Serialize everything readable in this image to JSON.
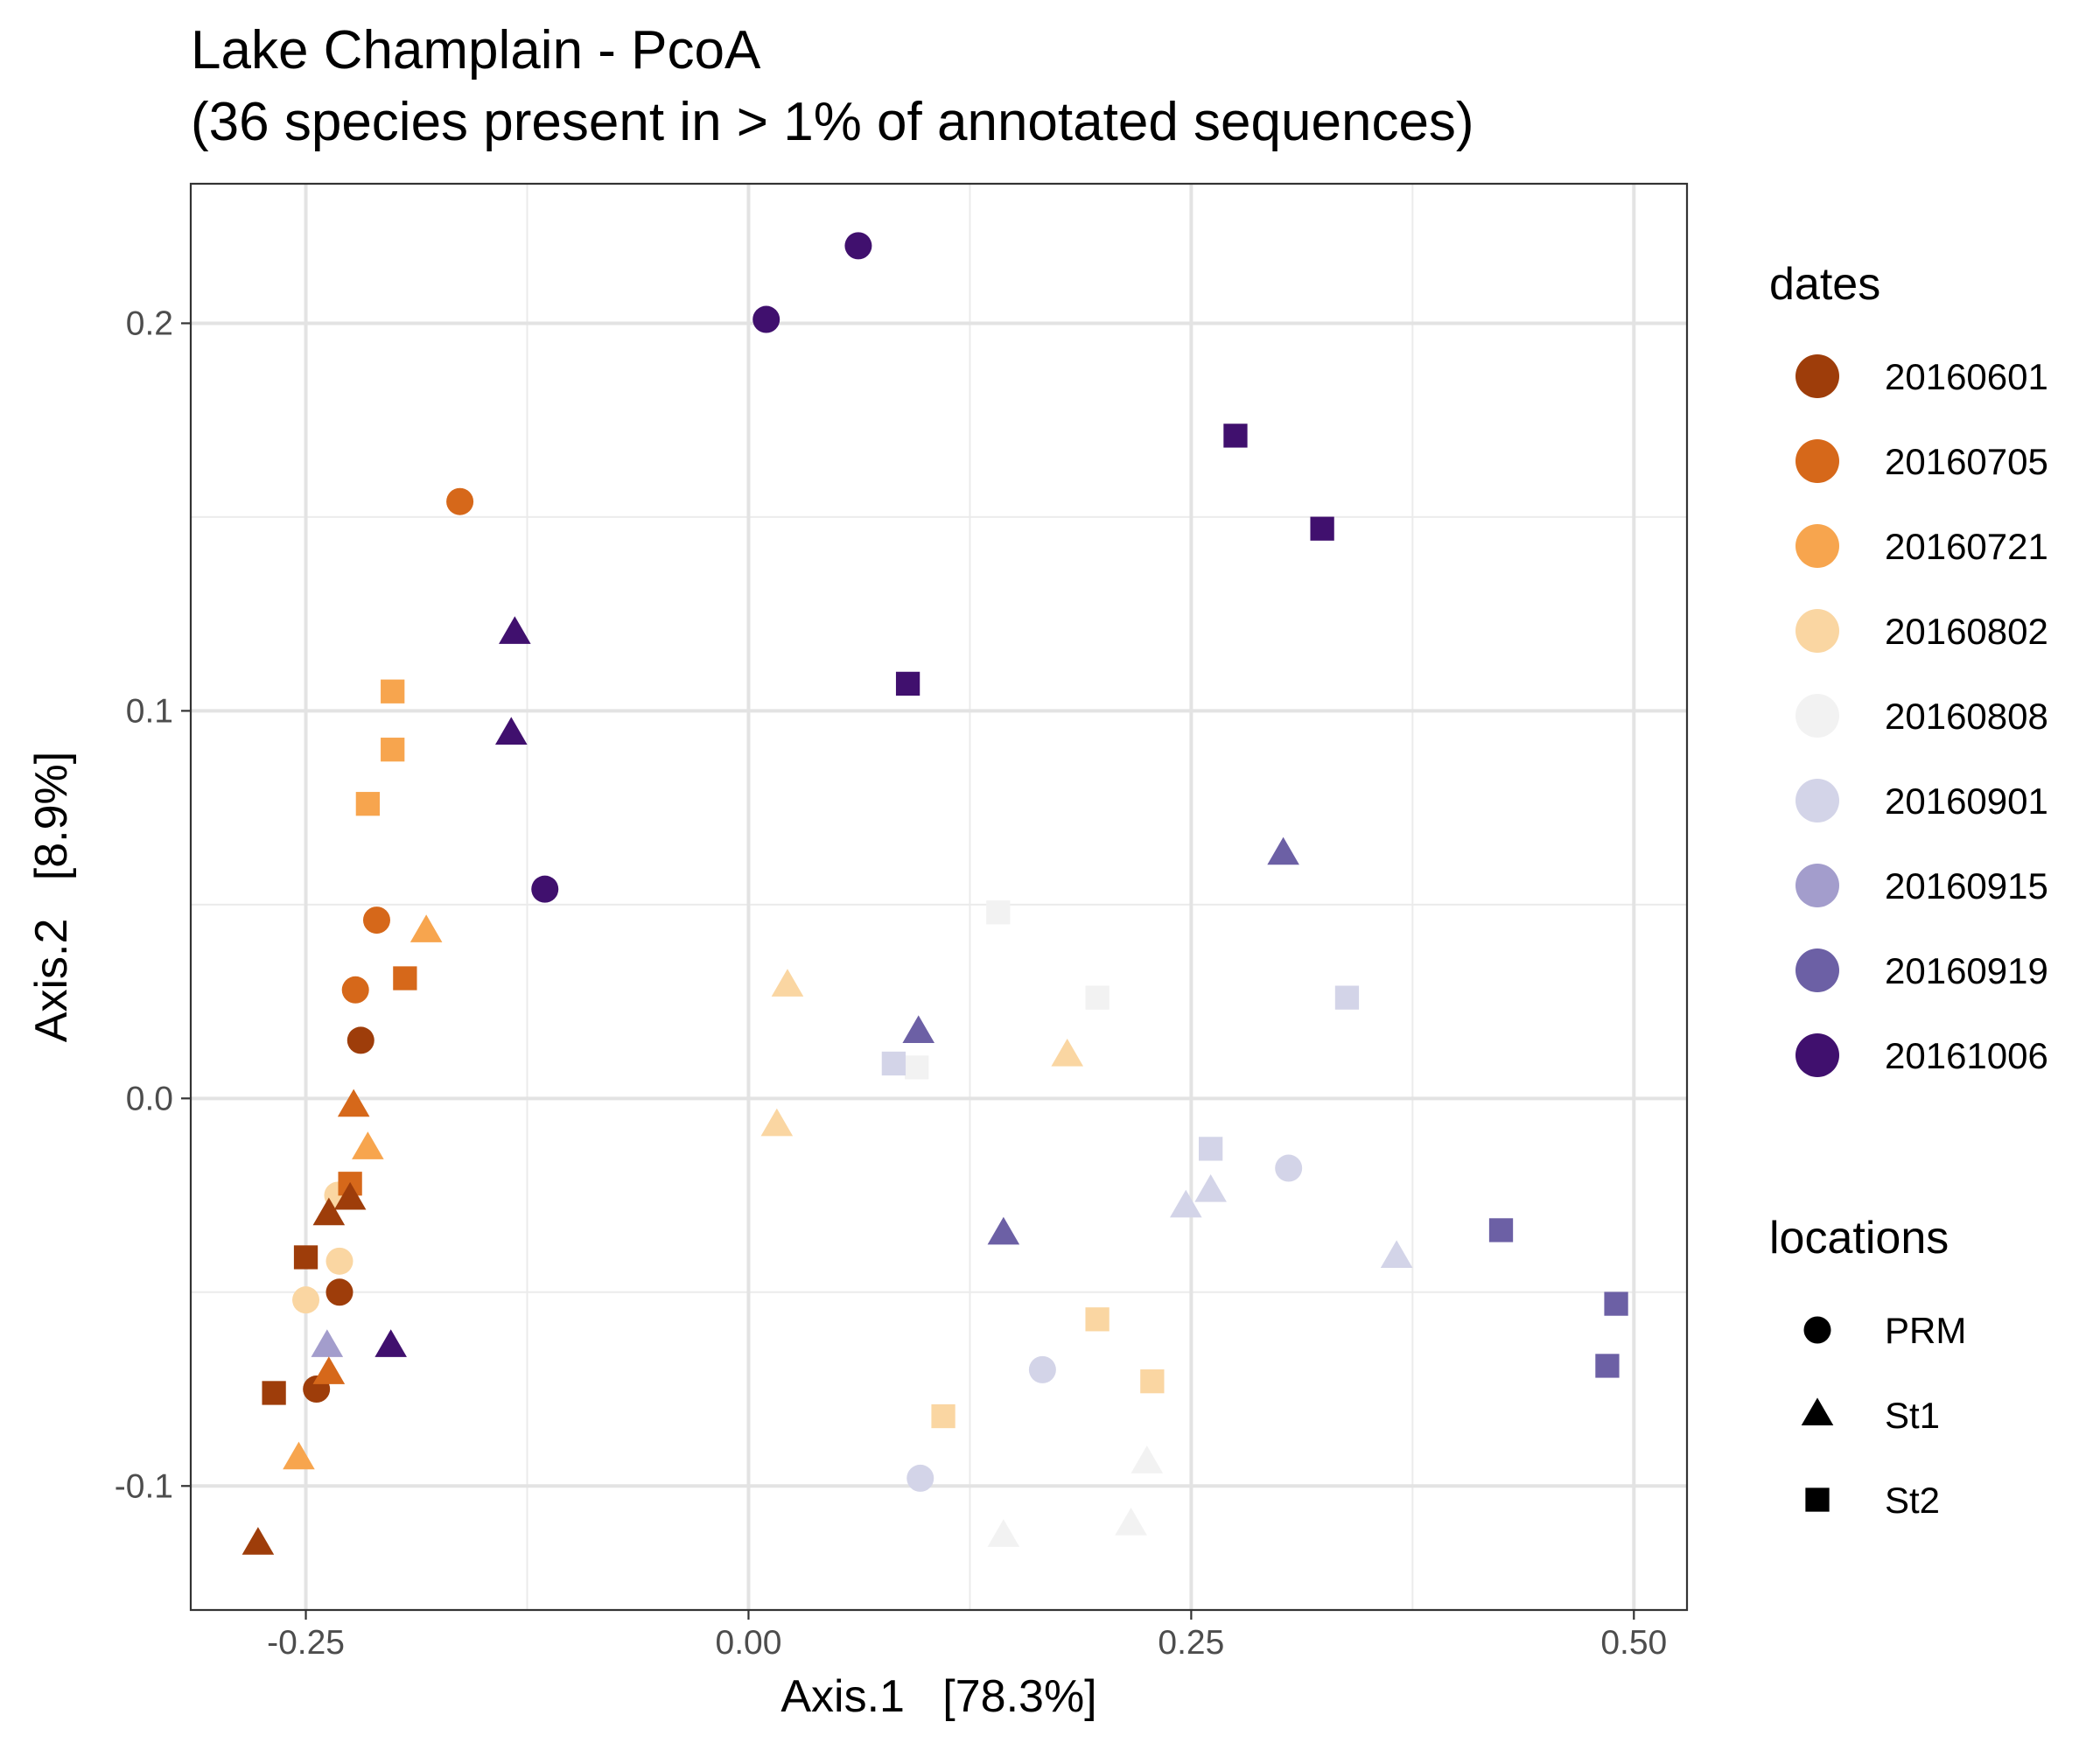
{
  "chart_data": {
    "type": "scatter",
    "title": "Lake Champlain - PcoA",
    "subtitle": "(36 species present in > 1% of annotated sequences)",
    "xlabel": "Axis.1   [78.3%]",
    "ylabel": "Axis.2   [8.9%]",
    "xlim": [
      -0.315,
      0.53
    ],
    "ylim": [
      -0.132,
      0.236
    ],
    "x_ticks": [
      {
        "value": -0.25,
        "label": "-0.25"
      },
      {
        "value": 0.0,
        "label": "0.00"
      },
      {
        "value": 0.25,
        "label": "0.25"
      },
      {
        "value": 0.5,
        "label": "0.50"
      }
    ],
    "y_ticks": [
      {
        "value": -0.1,
        "label": "-0.1"
      },
      {
        "value": 0.0,
        "label": "0.0"
      },
      {
        "value": 0.1,
        "label": "0.1"
      },
      {
        "value": 0.2,
        "label": "0.2"
      }
    ],
    "x_minor_grid": [
      -0.125,
      0.125,
      0.375
    ],
    "y_minor_grid": [
      -0.05,
      0.05,
      0.15
    ],
    "grid": true,
    "legend_position": "right",
    "color_legend": {
      "title": "dates",
      "entries": [
        {
          "label": "20160601",
          "color": "#9E3D0A"
        },
        {
          "label": "20160705",
          "color": "#D6681A"
        },
        {
          "label": "20160721",
          "color": "#F7A54E"
        },
        {
          "label": "20160802",
          "color": "#FAD6A2"
        },
        {
          "label": "20160808",
          "color": "#F2F2F2"
        },
        {
          "label": "20160901",
          "color": "#D3D4E8"
        },
        {
          "label": "20160915",
          "color": "#A39DCC"
        },
        {
          "label": "20160919",
          "color": "#6C60A5"
        },
        {
          "label": "20161006",
          "color": "#40106E"
        }
      ]
    },
    "shape_legend": {
      "title": "locations",
      "entries": [
        {
          "label": "PRM",
          "shape": "circle"
        },
        {
          "label": "St1",
          "shape": "triangle"
        },
        {
          "label": "St2",
          "shape": "square"
        }
      ]
    },
    "points": [
      {
        "x": 0.062,
        "y": 0.22,
        "date": "20161006",
        "location": "PRM"
      },
      {
        "x": 0.01,
        "y": 0.201,
        "date": "20161006",
        "location": "PRM"
      },
      {
        "x": -0.115,
        "y": 0.054,
        "date": "20161006",
        "location": "PRM"
      },
      {
        "x": -0.132,
        "y": 0.12,
        "date": "20161006",
        "location": "St1"
      },
      {
        "x": -0.134,
        "y": 0.094,
        "date": "20161006",
        "location": "St1"
      },
      {
        "x": -0.202,
        "y": -0.064,
        "date": "20161006",
        "location": "St1"
      },
      {
        "x": 0.275,
        "y": 0.171,
        "date": "20161006",
        "location": "St2"
      },
      {
        "x": 0.324,
        "y": 0.147,
        "date": "20161006",
        "location": "St2"
      },
      {
        "x": 0.09,
        "y": 0.107,
        "date": "20161006",
        "location": "St2"
      },
      {
        "x": -0.163,
        "y": 0.154,
        "date": "20160705",
        "location": "PRM"
      },
      {
        "x": -0.21,
        "y": 0.046,
        "date": "20160705",
        "location": "PRM"
      },
      {
        "x": -0.222,
        "y": 0.028,
        "date": "20160705",
        "location": "PRM"
      },
      {
        "x": -0.219,
        "y": 0.015,
        "date": "20160601",
        "location": "PRM"
      },
      {
        "x": -0.231,
        "y": -0.05,
        "date": "20160601",
        "location": "PRM"
      },
      {
        "x": -0.244,
        "y": -0.075,
        "date": "20160601",
        "location": "PRM"
      },
      {
        "x": -0.231,
        "y": -0.042,
        "date": "20160802",
        "location": "PRM"
      },
      {
        "x": -0.25,
        "y": -0.052,
        "date": "20160802",
        "location": "PRM"
      },
      {
        "x": -0.232,
        "y": -0.025,
        "date": "20160802",
        "location": "PRM"
      },
      {
        "x": 0.305,
        "y": -0.018,
        "date": "20160901",
        "location": "PRM"
      },
      {
        "x": 0.166,
        "y": -0.07,
        "date": "20160901",
        "location": "PRM"
      },
      {
        "x": 0.097,
        "y": -0.098,
        "date": "20160901",
        "location": "PRM"
      },
      {
        "x": -0.201,
        "y": 0.105,
        "date": "20160721",
        "location": "St2"
      },
      {
        "x": -0.201,
        "y": 0.09,
        "date": "20160721",
        "location": "St2"
      },
      {
        "x": -0.215,
        "y": 0.076,
        "date": "20160721",
        "location": "St2"
      },
      {
        "x": -0.194,
        "y": 0.031,
        "date": "20160705",
        "location": "St2"
      },
      {
        "x": -0.225,
        "y": -0.022,
        "date": "20160705",
        "location": "St2"
      },
      {
        "x": -0.25,
        "y": -0.041,
        "date": "20160601",
        "location": "St2"
      },
      {
        "x": -0.268,
        "y": -0.076,
        "date": "20160601",
        "location": "St2"
      },
      {
        "x": 0.11,
        "y": -0.082,
        "date": "20160802",
        "location": "St2"
      },
      {
        "x": 0.197,
        "y": -0.057,
        "date": "20160802",
        "location": "St2"
      },
      {
        "x": 0.228,
        "y": -0.073,
        "date": "20160802",
        "location": "St2"
      },
      {
        "x": 0.141,
        "y": 0.048,
        "date": "20160808",
        "location": "St2"
      },
      {
        "x": 0.197,
        "y": 0.026,
        "date": "20160808",
        "location": "St2"
      },
      {
        "x": 0.095,
        "y": 0.008,
        "date": "20160808",
        "location": "St2"
      },
      {
        "x": 0.082,
        "y": 0.009,
        "date": "20160901",
        "location": "St2"
      },
      {
        "x": 0.261,
        "y": -0.013,
        "date": "20160901",
        "location": "St2"
      },
      {
        "x": 0.338,
        "y": 0.026,
        "date": "20160901",
        "location": "St2"
      },
      {
        "x": 0.425,
        "y": -0.034,
        "date": "20160919",
        "location": "St2"
      },
      {
        "x": 0.49,
        "y": -0.053,
        "date": "20160919",
        "location": "St2"
      },
      {
        "x": 0.485,
        "y": -0.069,
        "date": "20160919",
        "location": "St2"
      },
      {
        "x": -0.182,
        "y": 0.043,
        "date": "20160721",
        "location": "St1"
      },
      {
        "x": -0.223,
        "y": -0.002,
        "date": "20160705",
        "location": "St1"
      },
      {
        "x": -0.215,
        "y": -0.013,
        "date": "20160721",
        "location": "St1"
      },
      {
        "x": -0.225,
        "y": -0.026,
        "date": "20160601",
        "location": "St1"
      },
      {
        "x": -0.237,
        "y": -0.03,
        "date": "20160601",
        "location": "St1"
      },
      {
        "x": -0.238,
        "y": -0.064,
        "date": "20160915",
        "location": "St1"
      },
      {
        "x": -0.237,
        "y": -0.071,
        "date": "20160705",
        "location": "St1"
      },
      {
        "x": -0.254,
        "y": -0.093,
        "date": "20160721",
        "location": "St1"
      },
      {
        "x": -0.277,
        "y": -0.115,
        "date": "20160601",
        "location": "St1"
      },
      {
        "x": 0.022,
        "y": 0.029,
        "date": "20160802",
        "location": "St1"
      },
      {
        "x": 0.016,
        "y": -0.007,
        "date": "20160802",
        "location": "St1"
      },
      {
        "x": 0.18,
        "y": 0.011,
        "date": "20160802",
        "location": "St1"
      },
      {
        "x": 0.096,
        "y": 0.017,
        "date": "20160919",
        "location": "St1"
      },
      {
        "x": 0.144,
        "y": -0.035,
        "date": "20160919",
        "location": "St1"
      },
      {
        "x": 0.302,
        "y": 0.063,
        "date": "20160919",
        "location": "St1"
      },
      {
        "x": 0.247,
        "y": -0.028,
        "date": "20160901",
        "location": "St1"
      },
      {
        "x": 0.261,
        "y": -0.024,
        "date": "20160901",
        "location": "St1"
      },
      {
        "x": 0.366,
        "y": -0.041,
        "date": "20160901",
        "location": "St1"
      },
      {
        "x": 0.225,
        "y": -0.094,
        "date": "20160808",
        "location": "St1"
      },
      {
        "x": 0.216,
        "y": -0.11,
        "date": "20160808",
        "location": "St1"
      },
      {
        "x": 0.144,
        "y": -0.113,
        "date": "20160808",
        "location": "St1"
      }
    ]
  }
}
